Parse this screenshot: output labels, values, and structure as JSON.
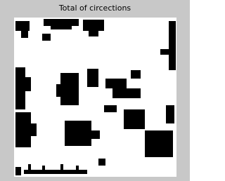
{
  "title": "Total of circections"
}
